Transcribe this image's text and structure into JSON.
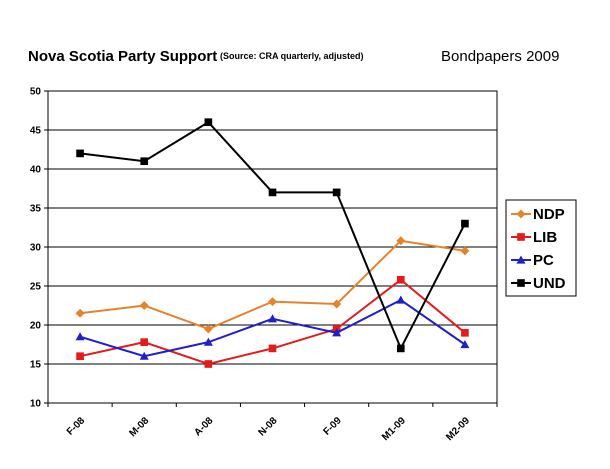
{
  "chart_data": {
    "type": "line",
    "title": "Nova Scotia Party Support",
    "subtitle": "(Source: CRA quarterly, adjusted)",
    "brand": "Bondpapers 2009",
    "categories": [
      "F-08",
      "M-08",
      "A-08",
      "N-08",
      "F-09",
      "M1-09",
      "M2-09"
    ],
    "ylim": [
      10,
      50
    ],
    "yticks": [
      10,
      15,
      20,
      25,
      30,
      35,
      40,
      45,
      50
    ],
    "grid": true,
    "legend_position": "right",
    "series": [
      {
        "name": "NDP",
        "color": "#E8822A",
        "marker": "diamond",
        "values": [
          21.5,
          22.5,
          19.5,
          23,
          22.7,
          30.8,
          29.5
        ]
      },
      {
        "name": "LIB",
        "color": "#E41A1C",
        "marker": "square",
        "values": [
          16,
          17.8,
          15,
          17,
          19.5,
          25.8,
          19
        ]
      },
      {
        "name": "PC",
        "color": "#1F1FCC",
        "marker": "triangle",
        "values": [
          18.5,
          16,
          17.8,
          20.8,
          19,
          23.2,
          17.5
        ]
      },
      {
        "name": "UND",
        "color": "#000000",
        "marker": "square",
        "values": [
          42,
          41,
          46,
          37,
          37,
          17,
          33
        ]
      }
    ]
  }
}
